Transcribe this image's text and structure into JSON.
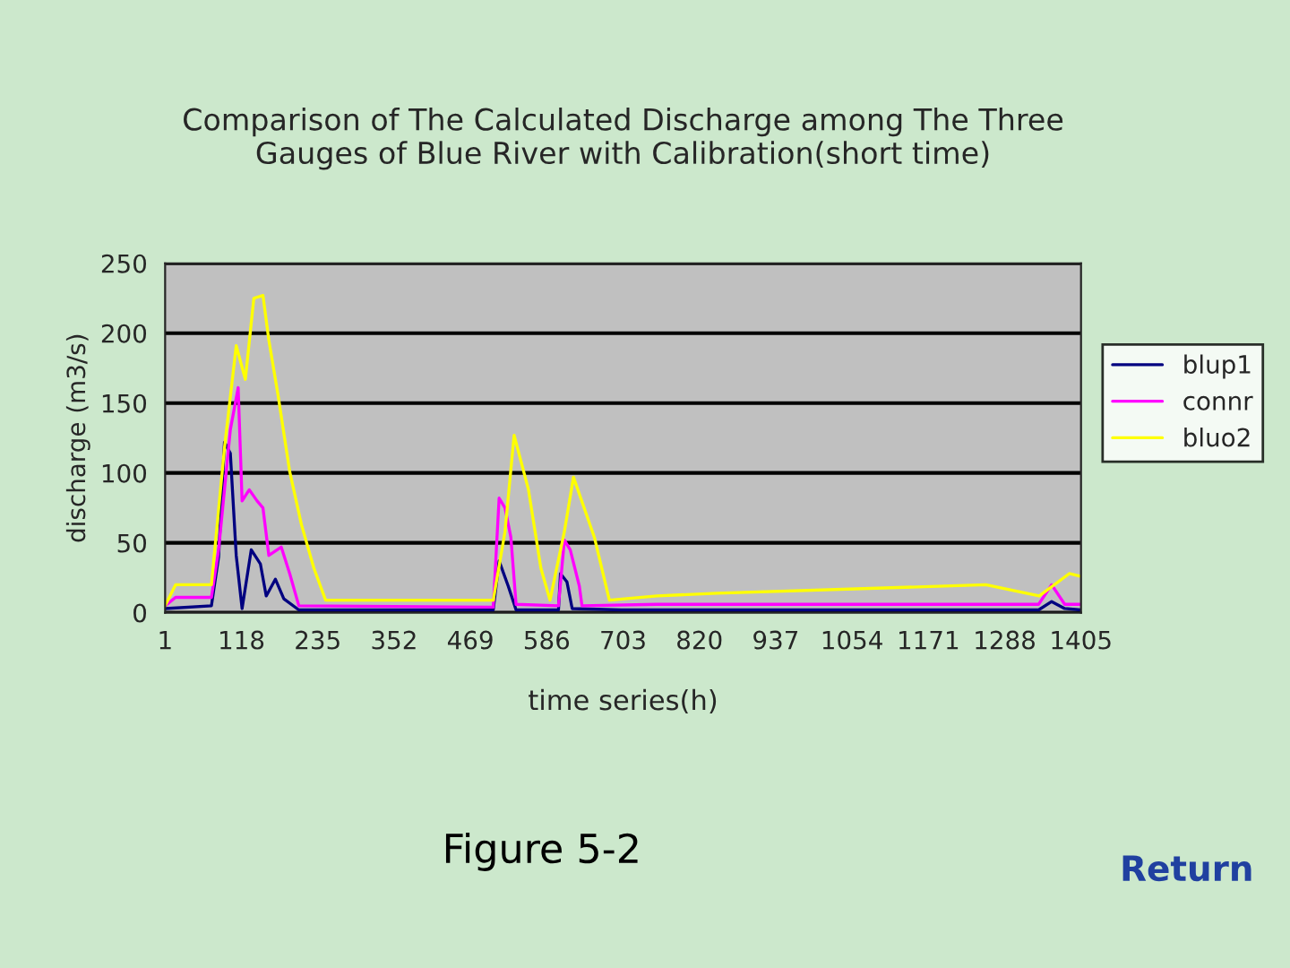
{
  "chart_data": {
    "type": "line",
    "title": "Comparison of The Calculated Discharge among The Three\nGauges of Blue River with Calibration(short time)",
    "xlabel": "time series(h)",
    "ylabel": "discharge (m3/s)",
    "xlim": [
      1,
      1405
    ],
    "xticks": [
      1,
      118,
      235,
      352,
      469,
      586,
      703,
      820,
      937,
      1054,
      1171,
      1288,
      1405
    ],
    "ylim": [
      0,
      250
    ],
    "yticks": [
      0,
      50,
      100,
      150,
      200,
      250
    ],
    "grid": "y",
    "legend": "right",
    "marker": "none",
    "line_style": "solid",
    "annotations": [
      "Figure 5-2",
      "Return"
    ],
    "series": [
      {
        "name": "blup1",
        "color": "#000080",
        "x": [
          1,
          72,
          83,
          92,
          101,
          110,
          119,
          133,
          147,
          156,
          170,
          183,
          206,
          504,
          513,
          527,
          539,
          604,
          607,
          617,
          625,
          700,
          1340,
          1360,
          1380,
          1405
        ],
        "values": [
          3,
          5,
          40,
          122,
          114,
          41,
          3,
          45,
          35,
          12,
          24,
          10,
          2,
          2,
          37,
          19,
          2,
          2,
          28,
          22,
          3,
          2,
          2,
          8,
          3,
          2
        ]
      },
      {
        "name": "connr",
        "color": "#ff00ff",
        "x": [
          1,
          17,
          72,
          83,
          101,
          113,
          119,
          130,
          142,
          151,
          160,
          179,
          192,
          206,
          504,
          513,
          522,
          531,
          539,
          604,
          613,
          622,
          636,
          640,
          755,
          1340,
          1360,
          1380,
          1405
        ],
        "values": [
          5,
          11,
          11,
          45,
          131,
          161,
          80,
          88,
          80,
          75,
          41,
          47,
          28,
          5,
          4,
          82,
          75,
          54,
          6,
          5,
          52,
          45,
          19,
          5,
          6,
          6,
          20,
          6,
          6
        ]
      },
      {
        "name": "bluo2",
        "color": "#ffff00",
        "x": [
          1,
          17,
          72,
          92,
          110,
          124,
          137,
          151,
          160,
          174,
          192,
          210,
          229,
          247,
          504,
          522,
          536,
          558,
          577,
          591,
          613,
          627,
          659,
          682,
          755,
          847,
          1259,
          1341,
          1387,
          1405
        ],
        "values": [
          5,
          20,
          20,
          118,
          191,
          167,
          225,
          227,
          195,
          156,
          101,
          63,
          32,
          9,
          9,
          58,
          127,
          88,
          32,
          9,
          58,
          97,
          54,
          9,
          12,
          14,
          20,
          12,
          28,
          26
        ]
      }
    ]
  }
}
